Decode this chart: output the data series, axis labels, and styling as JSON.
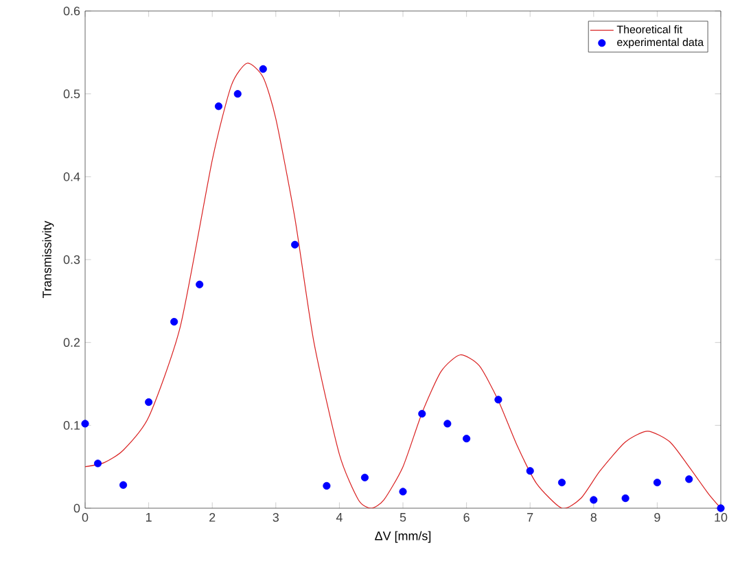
{
  "chart_data": {
    "type": "line",
    "xlabel": "ΔV  [mm/s]",
    "ylabel": "Transmissivity",
    "xlim": [
      0,
      10
    ],
    "ylim": [
      0,
      0.6
    ],
    "xticks": [
      0,
      1,
      2,
      3,
      4,
      5,
      6,
      7,
      8,
      9,
      10
    ],
    "yticks": [
      0,
      0.1,
      0.2,
      0.3,
      0.4,
      0.5,
      0.6
    ],
    "legend": "top right",
    "grid": false,
    "series": [
      {
        "name": "Theoretical fit",
        "color": "#d92020",
        "marker": "none",
        "x": [
          0,
          0.3,
          0.6,
          1,
          1.5,
          2,
          2.3,
          2.55,
          2.8,
          3,
          3.3,
          3.6,
          4,
          4.3,
          4.5,
          4.7,
          5,
          5.3,
          5.6,
          5.9,
          6.2,
          6.5,
          6.8,
          7.1,
          7.5,
          7.8,
          8.1,
          8.5,
          8.85,
          9.2,
          9.5,
          9.8,
          10
        ],
        "values": [
          0.05,
          0.055,
          0.07,
          0.11,
          0.22,
          0.42,
          0.51,
          0.537,
          0.52,
          0.47,
          0.35,
          0.2,
          0.065,
          0.01,
          0,
          0.01,
          0.05,
          0.115,
          0.165,
          0.185,
          0.172,
          0.13,
          0.075,
          0.03,
          0,
          0.012,
          0.045,
          0.08,
          0.093,
          0.08,
          0.05,
          0.018,
          0
        ]
      },
      {
        "name": "experimental data",
        "type": "scatter",
        "color": "#0000ff",
        "marker": "circle",
        "x": [
          0,
          0.2,
          0.6,
          1,
          1.4,
          1.8,
          2.1,
          2.4,
          2.8,
          3.3,
          3.8,
          4.4,
          5,
          5.3,
          5.7,
          6,
          6.5,
          7,
          7.5,
          8,
          8.5,
          9,
          9.5,
          10
        ],
        "values": [
          0.102,
          0.054,
          0.028,
          0.128,
          0.225,
          0.27,
          0.485,
          0.5,
          0.53,
          0.318,
          0.027,
          0.037,
          0.02,
          0.114,
          0.102,
          0.084,
          0.131,
          0.045,
          0.031,
          0.01,
          0.012,
          0.031,
          0.035,
          0
        ]
      }
    ]
  }
}
